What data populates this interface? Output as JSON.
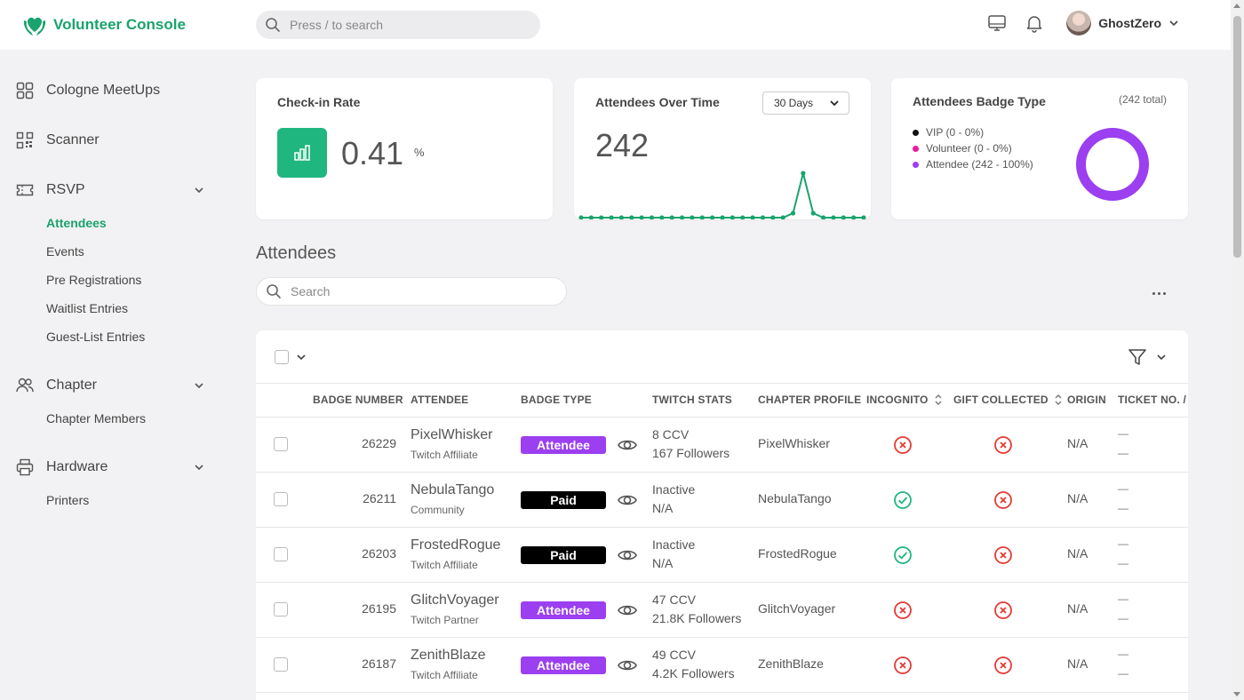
{
  "app": {
    "title": "Volunteer Console",
    "search_placeholder": "Press / to search"
  },
  "user": {
    "name": "GhostZero"
  },
  "sidebar": {
    "items": [
      {
        "label": "Cologne MeetUps",
        "icon": "grid-icon"
      },
      {
        "label": "Scanner",
        "icon": "qr-icon"
      },
      {
        "label": "RSVP",
        "icon": "ticket-icon",
        "expanded": true,
        "children": [
          "Attendees",
          "Events",
          "Pre Registrations",
          "Waitlist Entries",
          "Guest-List Entries"
        ]
      },
      {
        "label": "Chapter",
        "icon": "users-icon",
        "expanded": true,
        "children": [
          "Chapter Members"
        ]
      },
      {
        "label": "Hardware",
        "icon": "printer-icon",
        "expanded": true,
        "children": [
          "Printers"
        ]
      }
    ],
    "active": "Attendees"
  },
  "cards": {
    "checkin": {
      "title": "Check-in Rate",
      "value": "0.41",
      "unit": "%"
    },
    "over_time": {
      "title": "Attendees Over Time",
      "range": "30 Days",
      "value": "242"
    },
    "badge_type": {
      "title": "Attendees Badge Type",
      "total": "(242 total)",
      "legend": [
        {
          "label": "VIP (0 - 0%)",
          "color": "#111111"
        },
        {
          "label": "Volunteer (0 - 0%)",
          "color": "#e91e9c"
        },
        {
          "label": "Attendee (242 - 100%)",
          "color": "#9b3ff0"
        }
      ]
    }
  },
  "chart_data": {
    "type": "line",
    "values": [
      0,
      0,
      0,
      0,
      0,
      0,
      0,
      0,
      0,
      0,
      0,
      0,
      0,
      0,
      0,
      0,
      0,
      0,
      0,
      0,
      0,
      1,
      10,
      1,
      0,
      0,
      0,
      0,
      0
    ],
    "color": "#1aa36c"
  },
  "attendees": {
    "title": "Attendees",
    "search_placeholder": "Search",
    "columns": [
      "BADGE NUMBER",
      "ATTENDEE",
      "BADGE TYPE",
      "TWITCH STATS",
      "CHAPTER PROFILE",
      "INCOGNITO",
      "GIFT COLLECTED",
      "ORIGIN",
      "TICKET NO. / C"
    ],
    "rows": [
      {
        "badge": "26229",
        "name": "PixelWhisker",
        "sub": "Twitch Affiliate",
        "type": "Attendee",
        "stat1": "8 CCV",
        "stat2": "167 Followers",
        "profile": "PixelWhisker",
        "incognito": false,
        "gift": false,
        "origin": "N/A",
        "t1": "—",
        "t2": "—"
      },
      {
        "badge": "26211",
        "name": "NebulaTango",
        "sub": "Community",
        "type": "Paid",
        "stat1": "Inactive",
        "stat2": "N/A",
        "profile": "NebulaTango",
        "incognito": true,
        "gift": false,
        "origin": "N/A",
        "t1": "—",
        "t2": "—"
      },
      {
        "badge": "26203",
        "name": "FrostedRogue",
        "sub": "Twitch Affiliate",
        "type": "Paid",
        "stat1": "Inactive",
        "stat2": "N/A",
        "profile": "FrostedRogue",
        "incognito": true,
        "gift": false,
        "origin": "N/A",
        "t1": "—",
        "t2": "—"
      },
      {
        "badge": "26195",
        "name": "GlitchVoyager",
        "sub": "Twitch Partner",
        "type": "Attendee",
        "stat1": "47 CCV",
        "stat2": "21.8K Followers",
        "profile": "GlitchVoyager",
        "incognito": false,
        "gift": false,
        "origin": "N/A",
        "t1": "—",
        "t2": "—"
      },
      {
        "badge": "26187",
        "name": "ZenithBlaze",
        "sub": "Twitch Affiliate",
        "type": "Attendee",
        "stat1": "49 CCV",
        "stat2": "4.2K Followers",
        "profile": "ZenithBlaze",
        "incognito": false,
        "gift": false,
        "origin": "N/A",
        "t1": "—",
        "t2": "—"
      }
    ]
  },
  "colors": {
    "brand": "#1aa36c",
    "attendee_badge": "#9b3ff0",
    "paid_badge": "#000000",
    "ok": "#1fb67f",
    "error": "#e53935"
  }
}
